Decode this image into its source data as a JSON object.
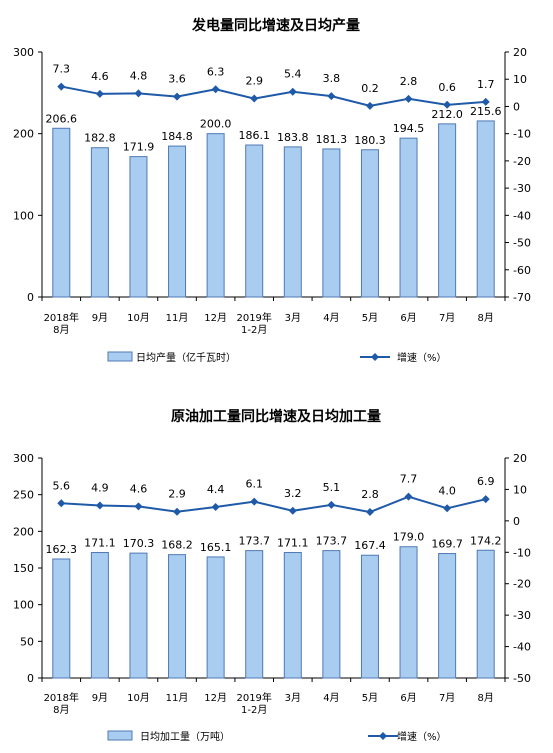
{
  "chart_data": [
    {
      "type": "bar",
      "title": "发电量同比增速及日均产量",
      "categories": [
        [
          "2018年",
          "8月"
        ],
        [
          "9月"
        ],
        [
          "10月"
        ],
        [
          "11月"
        ],
        [
          "12月"
        ],
        [
          "2019年",
          "1-2月"
        ],
        [
          "3月"
        ],
        [
          "4月"
        ],
        [
          "5月"
        ],
        [
          "6月"
        ],
        [
          "7月"
        ],
        [
          "8月"
        ]
      ],
      "series": [
        {
          "name": "日均产量（亿千瓦时）",
          "type": "bar",
          "axis": "left",
          "values": [
            206.6,
            182.8,
            171.9,
            184.8,
            200.0,
            186.1,
            183.8,
            181.3,
            180.3,
            194.5,
            212.0,
            215.6
          ],
          "labels": [
            "206.6",
            "182.8",
            "171.9",
            "184.8",
            "200.0",
            "186.1",
            "183.8",
            "181.3",
            "180.3",
            "194.5",
            "212.0",
            "215.6"
          ]
        },
        {
          "name": "增速（%）",
          "type": "line",
          "axis": "right",
          "values": [
            7.3,
            4.6,
            4.8,
            3.6,
            6.3,
            2.9,
            5.4,
            3.8,
            0.2,
            2.8,
            0.6,
            1.7
          ],
          "labels": [
            "7.3",
            "4.6",
            "4.8",
            "3.6",
            "6.3",
            "2.9",
            "5.4",
            "3.8",
            "0.2",
            "2.8",
            "0.6",
            "1.7"
          ]
        }
      ],
      "ylim_left": [
        0,
        300
      ],
      "yticks_left": [
        "0",
        "100",
        "200",
        "300"
      ],
      "ylim_right": [
        -70,
        20
      ],
      "yticks_right": [
        "-70",
        "-60",
        "-50",
        "-40",
        "-30",
        "-20",
        "-10",
        "0",
        "10",
        "20"
      ],
      "legend": "bottom",
      "colors": {
        "bar_fill": "#a9cdf0",
        "bar_stroke": "#4f79b4",
        "line": "#1f5aa8"
      }
    },
    {
      "type": "bar",
      "title": "原油加工量同比增速及日均加工量",
      "categories": [
        [
          "2018年",
          "8月"
        ],
        [
          "9月"
        ],
        [
          "10月"
        ],
        [
          "11月"
        ],
        [
          "12月"
        ],
        [
          "2019年",
          "1-2月"
        ],
        [
          "3月"
        ],
        [
          "4月"
        ],
        [
          "5月"
        ],
        [
          "6月"
        ],
        [
          "7月"
        ],
        [
          "8月"
        ]
      ],
      "series": [
        {
          "name": "日均加工量（万吨）",
          "type": "bar",
          "axis": "left",
          "values": [
            162.3,
            171.1,
            170.3,
            168.2,
            165.1,
            173.7,
            171.1,
            173.7,
            167.4,
            179.0,
            169.7,
            174.2
          ],
          "labels": [
            "162.3",
            "171.1",
            "170.3",
            "168.2",
            "165.1",
            "173.7",
            "171.1",
            "173.7",
            "167.4",
            "179.0",
            "169.7",
            "174.2"
          ]
        },
        {
          "name": "增速（%）",
          "type": "line",
          "axis": "right",
          "values": [
            5.6,
            4.9,
            4.6,
            2.9,
            4.4,
            6.1,
            3.2,
            5.1,
            2.8,
            7.7,
            4.0,
            6.9
          ],
          "labels": [
            "5.6",
            "4.9",
            "4.6",
            "2.9",
            "4.4",
            "6.1",
            "3.2",
            "5.1",
            "2.8",
            "7.7",
            "4.0",
            "6.9"
          ]
        }
      ],
      "ylim_left": [
        0,
        300
      ],
      "yticks_left": [
        "0",
        "50",
        "100",
        "150",
        "200",
        "250",
        "300"
      ],
      "ylim_right": [
        -50,
        20
      ],
      "yticks_right": [
        "-50",
        "-40",
        "-30",
        "-20",
        "-10",
        "0",
        "10",
        "20"
      ],
      "legend": "bottom",
      "colors": {
        "bar_fill": "#a9cdf0",
        "bar_stroke": "#4f79b4",
        "line": "#1f5aa8"
      }
    }
  ]
}
